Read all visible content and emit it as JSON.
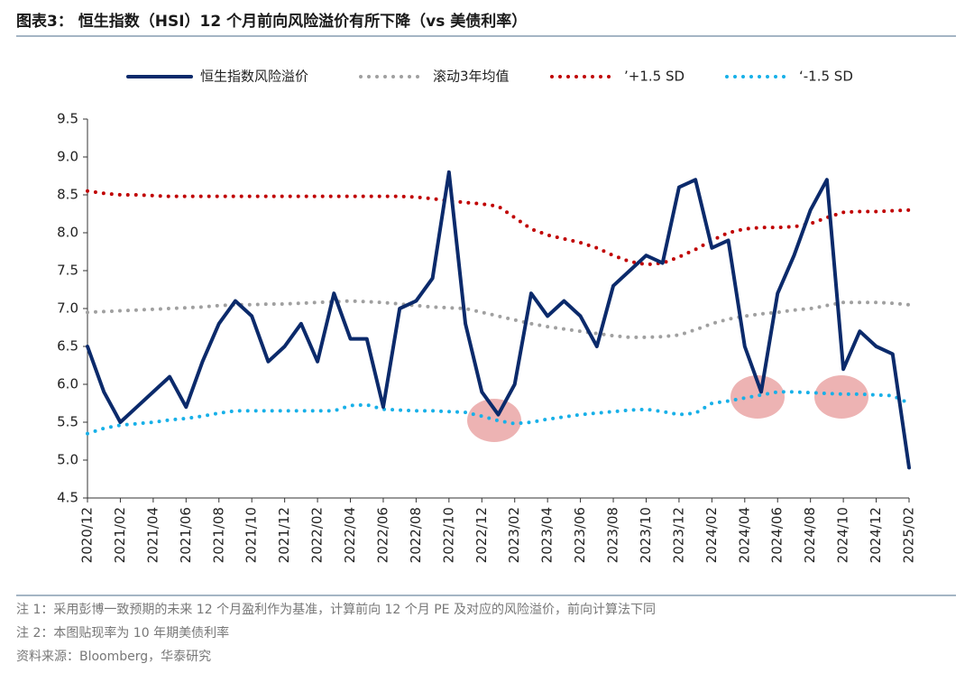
{
  "chart_data": {
    "type": "line",
    "title": "图表3： 恒生指数（HSI）12 个月前向风险溢价有所下降（vs 美债利率）",
    "notes": [
      "注 1：采用彭博一致预期的未来 12 个月盈利作为基准，计算前向 12 个月 PE 及对应的风险溢价，前向计算法下同",
      "注 2：本图贴现率为 10 年期美债利率",
      "资料来源：Bloomberg，华泰研究"
    ],
    "categories": [
      "2020/12",
      null,
      "2021/02",
      null,
      "2021/04",
      null,
      "2021/06",
      null,
      "2021/08",
      null,
      "2021/10",
      null,
      "2021/12",
      null,
      "2022/02",
      null,
      "2022/04",
      null,
      "2022/06",
      null,
      "2022/08",
      null,
      "2022/10",
      null,
      "2022/12",
      null,
      "2023/02",
      null,
      "2023/04",
      null,
      "2023/06",
      null,
      "2023/08",
      null,
      "2023/10",
      null,
      "2023/12",
      null,
      "2024/02",
      null,
      "2024/04",
      null,
      "2024/06",
      null,
      "2024/08",
      null,
      "2024/10",
      null,
      "2024/12",
      null,
      "2025/02"
    ],
    "series": [
      {
        "name": "恒生指数风险溢价",
        "color": "#0b2a6b",
        "style": "solid",
        "values": [
          6.5,
          5.9,
          5.5,
          5.7,
          5.9,
          6.1,
          5.7,
          6.3,
          6.8,
          7.1,
          6.9,
          6.3,
          6.5,
          6.8,
          6.3,
          7.2,
          6.6,
          6.6,
          5.7,
          7.0,
          7.1,
          7.4,
          8.8,
          6.8,
          5.9,
          5.6,
          6.0,
          7.2,
          6.9,
          7.1,
          6.9,
          6.5,
          7.3,
          7.5,
          7.7,
          7.6,
          8.6,
          8.7,
          7.8,
          7.9,
          6.5,
          5.9,
          7.2,
          7.7,
          8.3,
          8.7,
          6.2,
          6.7,
          6.5,
          6.4,
          4.9
        ]
      },
      {
        "name": "滚动3年均值",
        "color": "#a0a0a0",
        "style": "dotted",
        "values": [
          6.95,
          6.96,
          6.97,
          6.98,
          6.99,
          7.0,
          7.01,
          7.02,
          7.04,
          7.05,
          7.05,
          7.06,
          7.06,
          7.07,
          7.08,
          7.09,
          7.1,
          7.09,
          7.08,
          7.06,
          7.04,
          7.02,
          7.01,
          7.0,
          6.95,
          6.9,
          6.85,
          6.8,
          6.76,
          6.73,
          6.7,
          6.67,
          6.64,
          6.62,
          6.62,
          6.63,
          6.65,
          6.72,
          6.8,
          6.86,
          6.9,
          6.93,
          6.95,
          6.98,
          7.0,
          7.04,
          7.08,
          7.08,
          7.08,
          7.07,
          7.05
        ]
      },
      {
        "name": "’+1.5 SD",
        "color": "#c00000",
        "style": "dotted",
        "values": [
          8.55,
          8.52,
          8.5,
          8.5,
          8.49,
          8.48,
          8.48,
          8.48,
          8.48,
          8.48,
          8.48,
          8.48,
          8.48,
          8.48,
          8.48,
          8.48,
          8.48,
          8.48,
          8.48,
          8.48,
          8.47,
          8.45,
          8.42,
          8.4,
          8.38,
          8.35,
          8.2,
          8.05,
          7.97,
          7.92,
          7.87,
          7.8,
          7.7,
          7.62,
          7.58,
          7.6,
          7.68,
          7.78,
          7.9,
          8.0,
          8.05,
          8.07,
          8.07,
          8.08,
          8.12,
          8.2,
          8.27,
          8.28,
          8.28,
          8.29,
          8.3
        ]
      },
      {
        "name": "‘-1.5 SD",
        "color": "#17b0e8",
        "style": "dotted",
        "values": [
          5.35,
          5.42,
          5.46,
          5.48,
          5.5,
          5.53,
          5.55,
          5.58,
          5.62,
          5.65,
          5.65,
          5.65,
          5.65,
          5.65,
          5.65,
          5.65,
          5.72,
          5.73,
          5.67,
          5.66,
          5.65,
          5.65,
          5.64,
          5.63,
          5.58,
          5.52,
          5.48,
          5.5,
          5.54,
          5.57,
          5.6,
          5.62,
          5.64,
          5.66,
          5.67,
          5.64,
          5.6,
          5.62,
          5.75,
          5.78,
          5.82,
          5.86,
          5.9,
          5.9,
          5.89,
          5.88,
          5.87,
          5.87,
          5.86,
          5.85,
          5.75
        ]
      }
    ],
    "ylim": [
      4.5,
      9.5
    ],
    "yticks": [
      4.5,
      {
        "value": 5,
        "label": "5.0"
      },
      5.5,
      {
        "value": 6,
        "label": "6.0"
      },
      6.5,
      {
        "value": 7,
        "label": "7.0"
      },
      7.5,
      {
        "value": 8,
        "label": "8.0"
      },
      8.5,
      {
        "value": 9,
        "label": "9.0"
      },
      9.5
    ],
    "grid": false
  }
}
